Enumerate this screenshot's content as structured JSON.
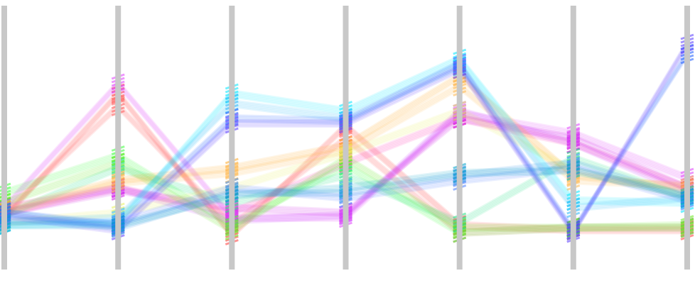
{
  "chart_data": {
    "type": "parallel_coordinates",
    "title": "",
    "axis_count": 7,
    "axes": [
      {
        "name": "",
        "ylim": [
          0,
          100
        ]
      },
      {
        "name": "",
        "ylim": [
          0,
          100
        ]
      },
      {
        "name": "",
        "ylim": [
          0,
          100
        ]
      },
      {
        "name": "",
        "ylim": [
          0,
          100
        ]
      },
      {
        "name": "",
        "ylim": [
          0,
          100
        ]
      },
      {
        "name": "",
        "ylim": [
          0,
          100
        ]
      },
      {
        "name": "",
        "ylim": [
          0,
          100
        ]
      }
    ],
    "axis_color": "#c8c8c8",
    "line_opacity": 0.13,
    "spread": 2.2,
    "copies": 5,
    "series": [
      {
        "color": "#ff3b3b",
        "values": [
          18,
          68,
          11,
          55,
          15,
          13,
          13
        ]
      },
      {
        "color": "#ff5a5a",
        "values": [
          20,
          63,
          15,
          50,
          12,
          14,
          14
        ]
      },
      {
        "color": "#ff2fb0",
        "values": [
          20,
          30,
          20,
          40,
          58,
          48,
          30
        ]
      },
      {
        "color": "#e040fb",
        "values": [
          22,
          72,
          18,
          18,
          60,
          52,
          34
        ]
      },
      {
        "color": "#d01ee8",
        "values": [
          20,
          29,
          22,
          20,
          58,
          50,
          30
        ]
      },
      {
        "color": "#cc33ff",
        "values": [
          22,
          30,
          17,
          19,
          61,
          48,
          28
        ]
      },
      {
        "color": "#3dff3d",
        "values": [
          28,
          43,
          15,
          39,
          12,
          14,
          14
        ]
      },
      {
        "color": "#66e81e",
        "values": [
          24,
          40,
          13,
          42,
          14,
          14,
          15
        ]
      },
      {
        "color": "#22e082",
        "values": [
          19,
          38,
          24,
          35,
          16,
          42,
          26
        ]
      },
      {
        "color": "#ffa726",
        "values": [
          21,
          33,
          38,
          47,
          75,
          35,
          30
        ]
      },
      {
        "color": "#ffb74d",
        "values": [
          20,
          32,
          36,
          45,
          71,
          33,
          31
        ]
      },
      {
        "color": "#e8f060",
        "values": [
          16,
          20,
          30,
          44,
          61,
          37,
          27
        ]
      },
      {
        "color": "#00e5ff",
        "values": [
          15,
          16,
          68,
          61,
          82,
          25,
          24
        ]
      },
      {
        "color": "#29b6f6",
        "values": [
          16,
          18,
          64,
          58,
          79,
          22,
          26
        ]
      },
      {
        "color": "#1e5bff",
        "values": [
          20,
          15,
          58,
          57,
          80,
          13,
          84
        ]
      },
      {
        "color": "#5a3dff",
        "values": [
          19,
          13,
          56,
          56,
          78,
          12,
          88
        ]
      },
      {
        "color": "#4d7dff",
        "values": [
          17,
          16,
          30,
          26,
          33,
          38,
          25
        ]
      },
      {
        "color": "#1e88e5",
        "values": [
          20,
          14,
          28,
          28,
          35,
          40,
          26
        ]
      },
      {
        "color": "#00a0c8",
        "values": [
          15,
          15,
          27,
          30,
          36,
          37,
          27
        ]
      }
    ]
  }
}
